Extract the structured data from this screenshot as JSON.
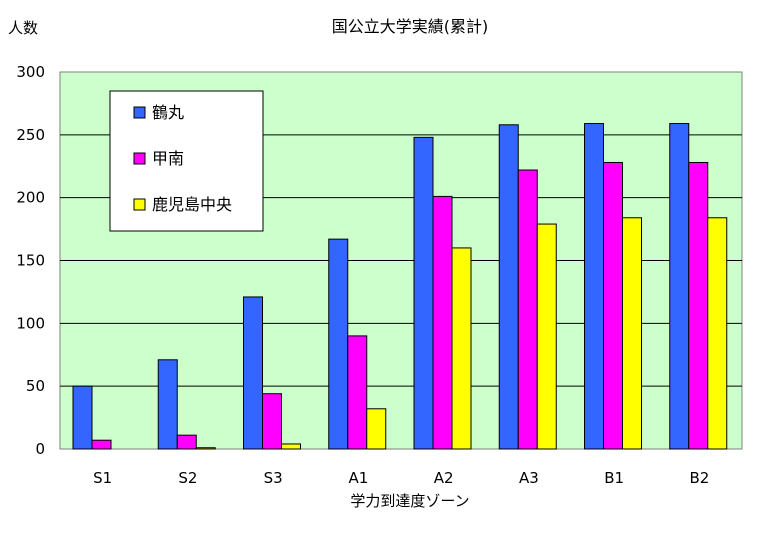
{
  "chart_data": {
    "type": "bar",
    "title": "国公立大学実績(累計)",
    "ylabel": "人数",
    "xlabel": "学力到達度ゾーン",
    "categories": [
      "S1",
      "S2",
      "S3",
      "A1",
      "A2",
      "A3",
      "B1",
      "B2"
    ],
    "series": [
      {
        "name": "鶴丸",
        "color": "#3366ff",
        "values": [
          50,
          71,
          121,
          167,
          248,
          258,
          259,
          259
        ]
      },
      {
        "name": "甲南",
        "color": "#ff00ff",
        "values": [
          7,
          11,
          44,
          90,
          201,
          222,
          228,
          228
        ]
      },
      {
        "name": "鹿児島中央",
        "color": "#ffff00",
        "values": [
          0,
          1,
          4,
          32,
          160,
          179,
          184,
          184
        ]
      }
    ],
    "ylim": [
      0,
      300
    ],
    "yticks": [
      0,
      50,
      100,
      150,
      200,
      250,
      300
    ],
    "grid": true,
    "plot_background": "#ccffcc",
    "legend": "top-left"
  }
}
